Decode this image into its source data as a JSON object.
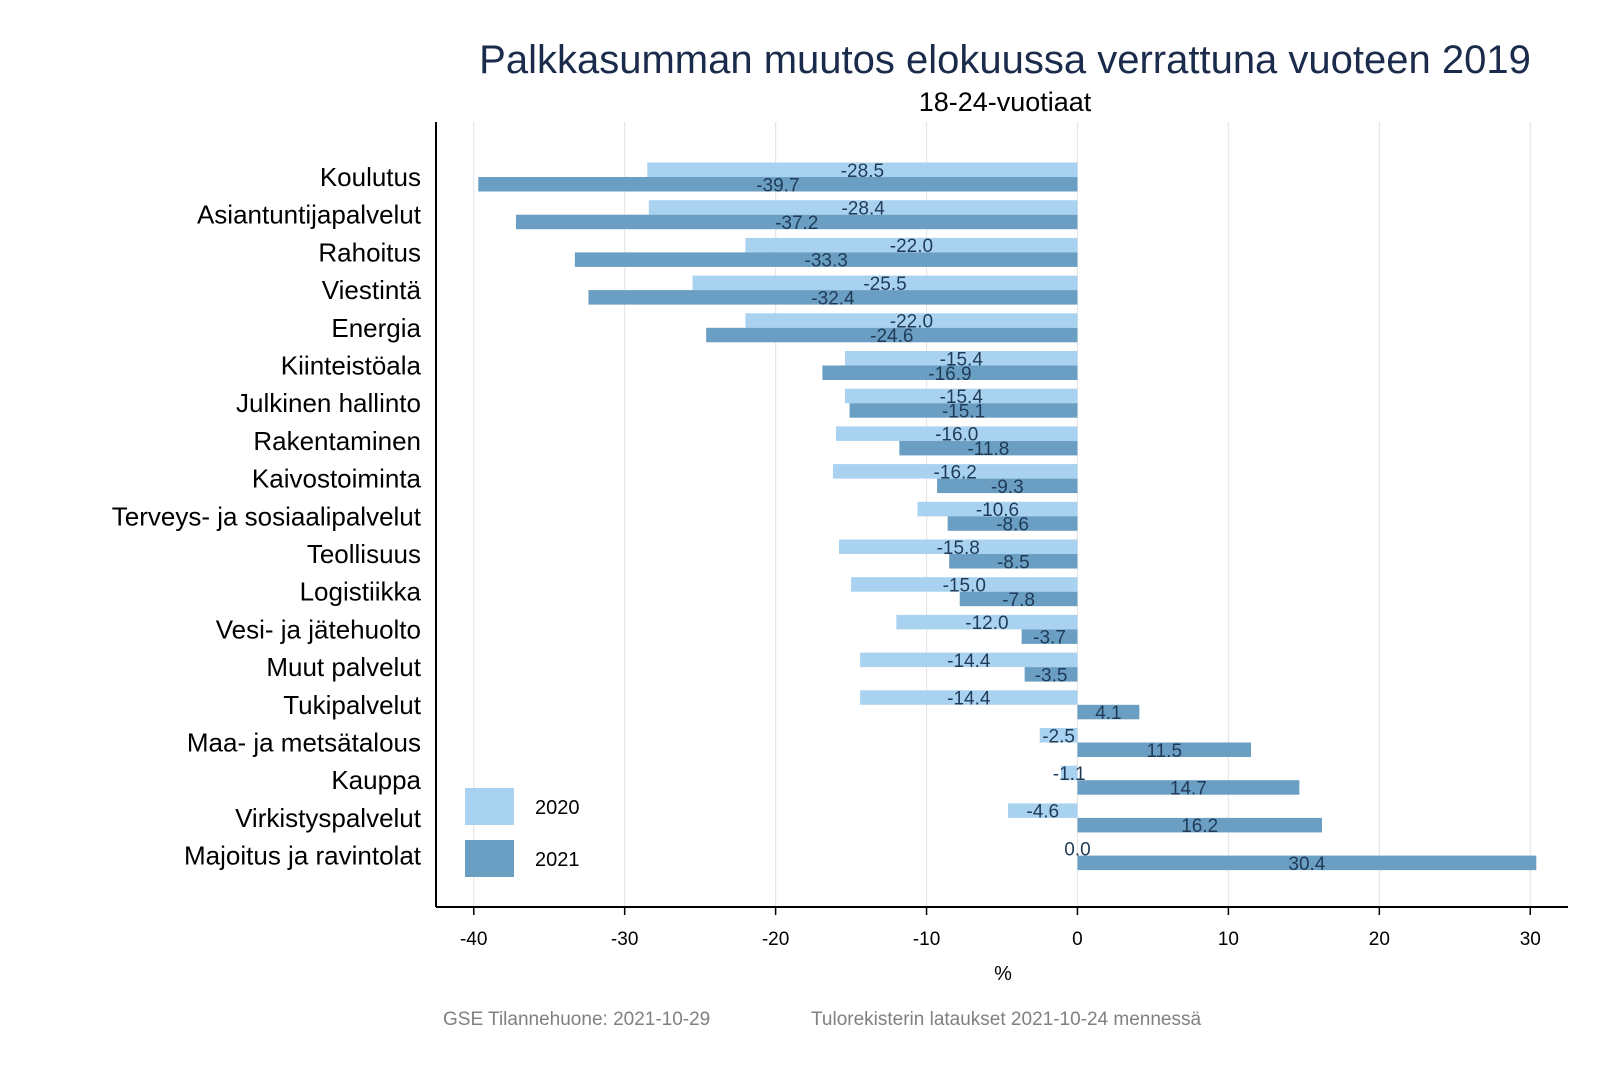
{
  "chart_data": {
    "type": "bar",
    "orientation": "horizontal",
    "title": "Palkkasumman muutos elokuussa verrattuna vuoteen 2019",
    "subtitle": "18-24-vuotiaat",
    "xlabel": "%",
    "ylabel": "",
    "xlim": [
      -42.5,
      32.5
    ],
    "x_ticks": [
      -40,
      -30,
      -20,
      -10,
      0,
      10,
      20,
      30
    ],
    "grid": "vertical",
    "legend_position": "bottom-left",
    "categories": [
      "Koulutus",
      "Asiantuntijapalvelut",
      "Rahoitus",
      "Viestintä",
      "Energia",
      "Kiinteistöala",
      "Julkinen hallinto",
      "Rakentaminen",
      "Kaivostoiminta",
      "Terveys- ja sosiaalipalvelut",
      "Teollisuus",
      "Logistiikka",
      "Vesi- ja jätehuolto",
      "Muut palvelut",
      "Tukipalvelut",
      "Maa- ja metsätalous",
      "Kauppa",
      "Virkistyspalvelut",
      "Majoitus ja ravintolat"
    ],
    "series": [
      {
        "name": "2020",
        "color": "#a9d2f0",
        "values": [
          -28.5,
          -28.4,
          -22.0,
          -25.5,
          -22.0,
          -15.4,
          -15.4,
          -16.0,
          -16.2,
          -10.6,
          -15.8,
          -15.0,
          -12.0,
          -14.4,
          -14.4,
          -2.5,
          -1.1,
          -4.6,
          0.0
        ]
      },
      {
        "name": "2021",
        "color": "#6a9ec3",
        "values": [
          -39.7,
          -37.2,
          -33.3,
          -32.4,
          -24.6,
          -16.9,
          -15.1,
          -11.8,
          -9.3,
          -8.6,
          -8.5,
          -7.8,
          -3.7,
          -3.5,
          4.1,
          11.5,
          14.7,
          16.2,
          30.4
        ]
      }
    ]
  },
  "footer": {
    "source": "GSE Tilannehuone: 2021-10-29",
    "note": "Tulorekisterin lataukset 2021-10-24 mennessä"
  }
}
